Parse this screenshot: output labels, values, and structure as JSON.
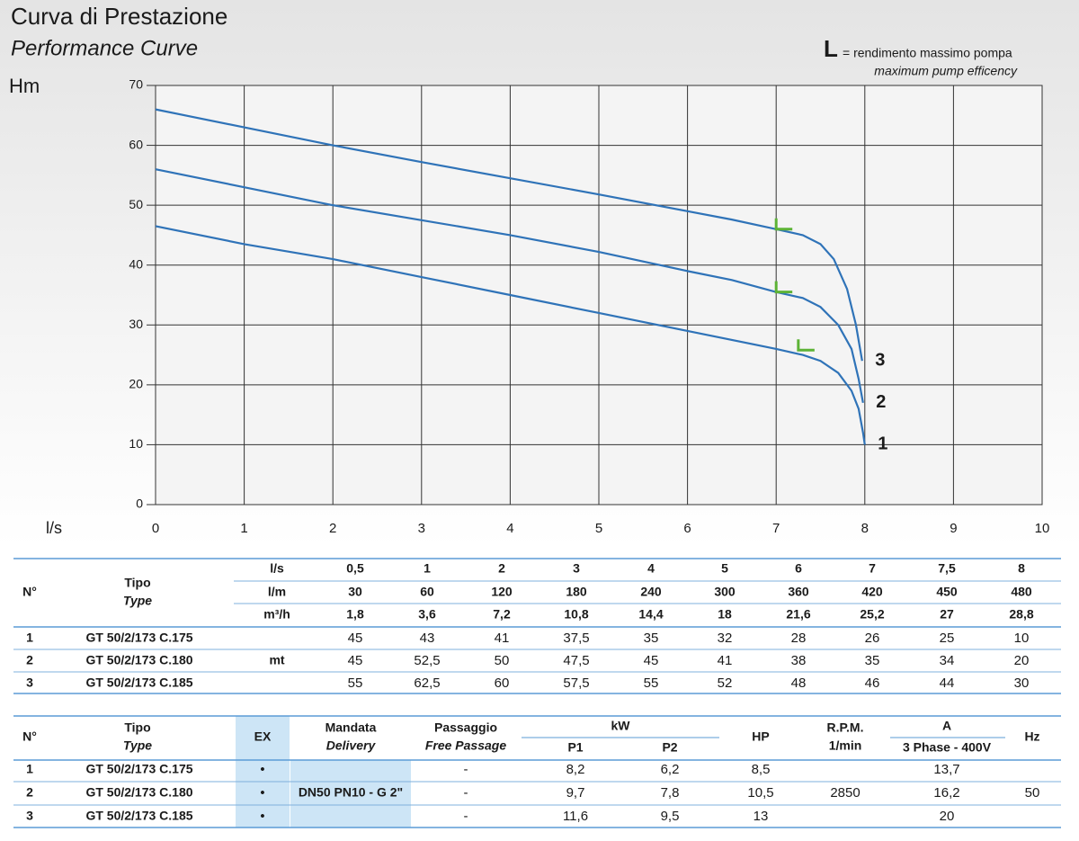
{
  "chart_data": {
    "type": "line",
    "title": "Curva di Prestazione",
    "subtitle": "Performance Curve",
    "y_label": "Hm",
    "x_label": "l/s",
    "xlim": [
      0,
      10
    ],
    "ylim": [
      0,
      70
    ],
    "xticks": [
      0,
      1,
      2,
      3,
      4,
      5,
      6,
      7,
      8,
      9,
      10
    ],
    "yticks": [
      0,
      10,
      20,
      30,
      40,
      50,
      60,
      70
    ],
    "grid": true,
    "series": [
      {
        "name": "1",
        "color": "#2f73b8",
        "x": [
          0,
          1,
          2,
          3,
          4,
          5,
          6,
          7,
          7.3,
          7.5,
          7.7,
          7.85,
          7.93,
          7.98,
          8
        ],
        "values": [
          46.5,
          43.5,
          41,
          38,
          35,
          32,
          29,
          26,
          25,
          24,
          22,
          19,
          16,
          12,
          10
        ]
      },
      {
        "name": "2",
        "color": "#2f73b8",
        "x": [
          0,
          1,
          2,
          3,
          4,
          5,
          6,
          6.5,
          7,
          7.3,
          7.5,
          7.7,
          7.85,
          7.93,
          7.98
        ],
        "values": [
          56,
          53,
          50,
          47.5,
          45,
          42.2,
          39,
          37.5,
          35.5,
          34.5,
          33,
          30,
          26,
          21,
          17
        ]
      },
      {
        "name": "3",
        "color": "#2f73b8",
        "x": [
          0,
          1,
          2,
          3,
          4,
          5,
          6,
          6.5,
          7,
          7.3,
          7.5,
          7.65,
          7.8,
          7.9,
          7.97
        ],
        "values": [
          66,
          63,
          60,
          57.2,
          54.5,
          51.8,
          49,
          47.6,
          46,
          45,
          43.5,
          41,
          36,
          30,
          24
        ]
      }
    ],
    "efficiency": {
      "symbol": "L",
      "label": "= rendimento massimo pompa",
      "label_en": "maximum pump efficency",
      "color": "#5db336",
      "x": [
        7.25,
        7,
        7
      ],
      "values": [
        25.8,
        35.5,
        46
      ]
    }
  },
  "table1": {
    "no_header": "N°",
    "type_header": "Tipo",
    "type_header_en": "Type",
    "flow_units": [
      "l/s",
      "l/m",
      "m³/h"
    ],
    "flows": [
      [
        "0,5",
        "1",
        "2",
        "3",
        "4",
        "5",
        "6",
        "7",
        "7,5",
        "8"
      ],
      [
        "30",
        "60",
        "120",
        "180",
        "240",
        "300",
        "360",
        "420",
        "450",
        "480"
      ],
      [
        "1,8",
        "3,6",
        "7,2",
        "10,8",
        "14,4",
        "18",
        "21,6",
        "25,2",
        "27",
        "28,8"
      ]
    ],
    "head_unit": "mt",
    "rows": [
      {
        "no": "1",
        "model": "GT 50/2/173 C.175",
        "heads": [
          "45",
          "43",
          "41",
          "37,5",
          "35",
          "32",
          "28",
          "26",
          "25",
          "10"
        ]
      },
      {
        "no": "2",
        "model": "GT 50/2/173 C.180",
        "heads": [
          "45",
          "52,5",
          "50",
          "47,5",
          "45",
          "41",
          "38",
          "35",
          "34",
          "20"
        ]
      },
      {
        "no": "3",
        "model": "GT 50/2/173 C.185",
        "heads": [
          "55",
          "62,5",
          "60",
          "57,5",
          "55",
          "52",
          "48",
          "46",
          "44",
          "30"
        ]
      }
    ]
  },
  "table2": {
    "headers": {
      "no": "N°",
      "type": "Tipo",
      "type_en": "Type",
      "ex": "EX",
      "delivery": "Mandata",
      "delivery_en": "Delivery",
      "passage": "Passaggio",
      "passage_en": "Free Passage",
      "kw": "kW",
      "p1": "P1",
      "p2": "P2",
      "hp": "HP",
      "rpm": "R.P.M.",
      "rpm_unit": "1/min",
      "amps": "A",
      "amps_note": "3 Phase - 400V",
      "hz": "Hz"
    },
    "rows": [
      {
        "no": "1",
        "model": "GT 50/2/173 C.175",
        "ex": "•",
        "passage": "-",
        "p1": "8,2",
        "p2": "6,2",
        "hp": "8,5",
        "amps": "13,7"
      },
      {
        "no": "2",
        "model": "GT 50/2/173 C.180",
        "ex": "•",
        "passage": "-",
        "p1": "9,7",
        "p2": "7,8",
        "hp": "10,5",
        "amps": "16,2"
      },
      {
        "no": "3",
        "model": "GT 50/2/173 C.185",
        "ex": "•",
        "passage": "-",
        "p1": "11,6",
        "p2": "9,5",
        "hp": "13",
        "amps": "20"
      }
    ],
    "delivery": "DN50 PN10 - G 2\"",
    "rpm": "2850",
    "hz": "50"
  }
}
